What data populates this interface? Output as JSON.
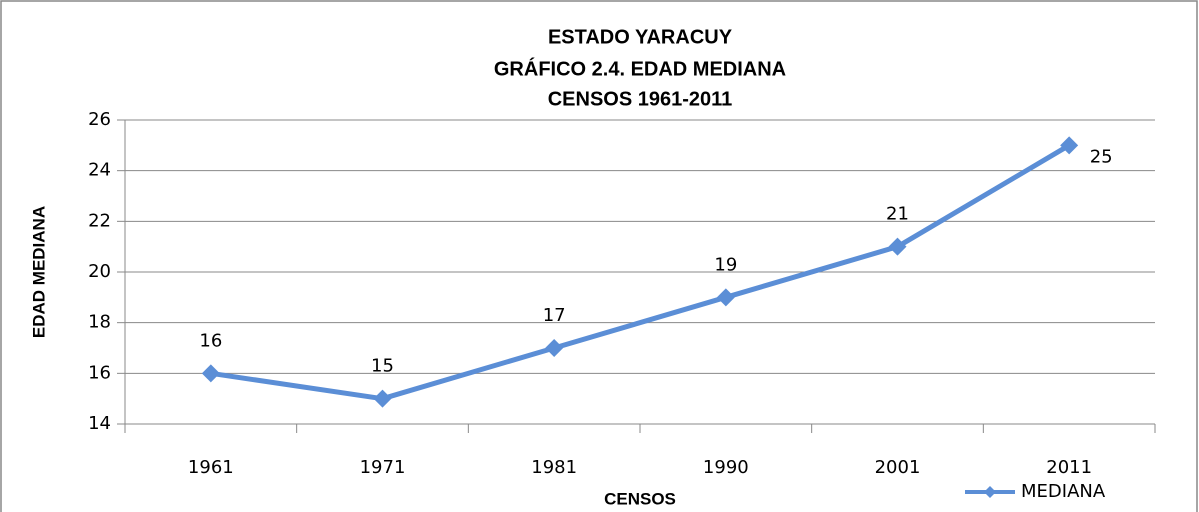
{
  "chart_data": {
    "type": "line",
    "title": [
      "ESTADO YARACUY",
      "GRÁFICO 2.4. EDAD MEDIANA",
      "CENSOS 1961-2011"
    ],
    "xlabel": "CENSOS",
    "ylabel": "EDAD MEDIANA",
    "categories": [
      "1961",
      "1971",
      "1981",
      "1990",
      "2001",
      "2011"
    ],
    "series": [
      {
        "name": "MEDIANA",
        "color": "#5b8ed6",
        "values": [
          16,
          15,
          17,
          19,
          21,
          25
        ]
      }
    ],
    "ylim": [
      14,
      26
    ],
    "yticks": [
      14,
      16,
      18,
      20,
      22,
      24,
      26
    ],
    "grid": true,
    "legend": "bottom-right"
  }
}
